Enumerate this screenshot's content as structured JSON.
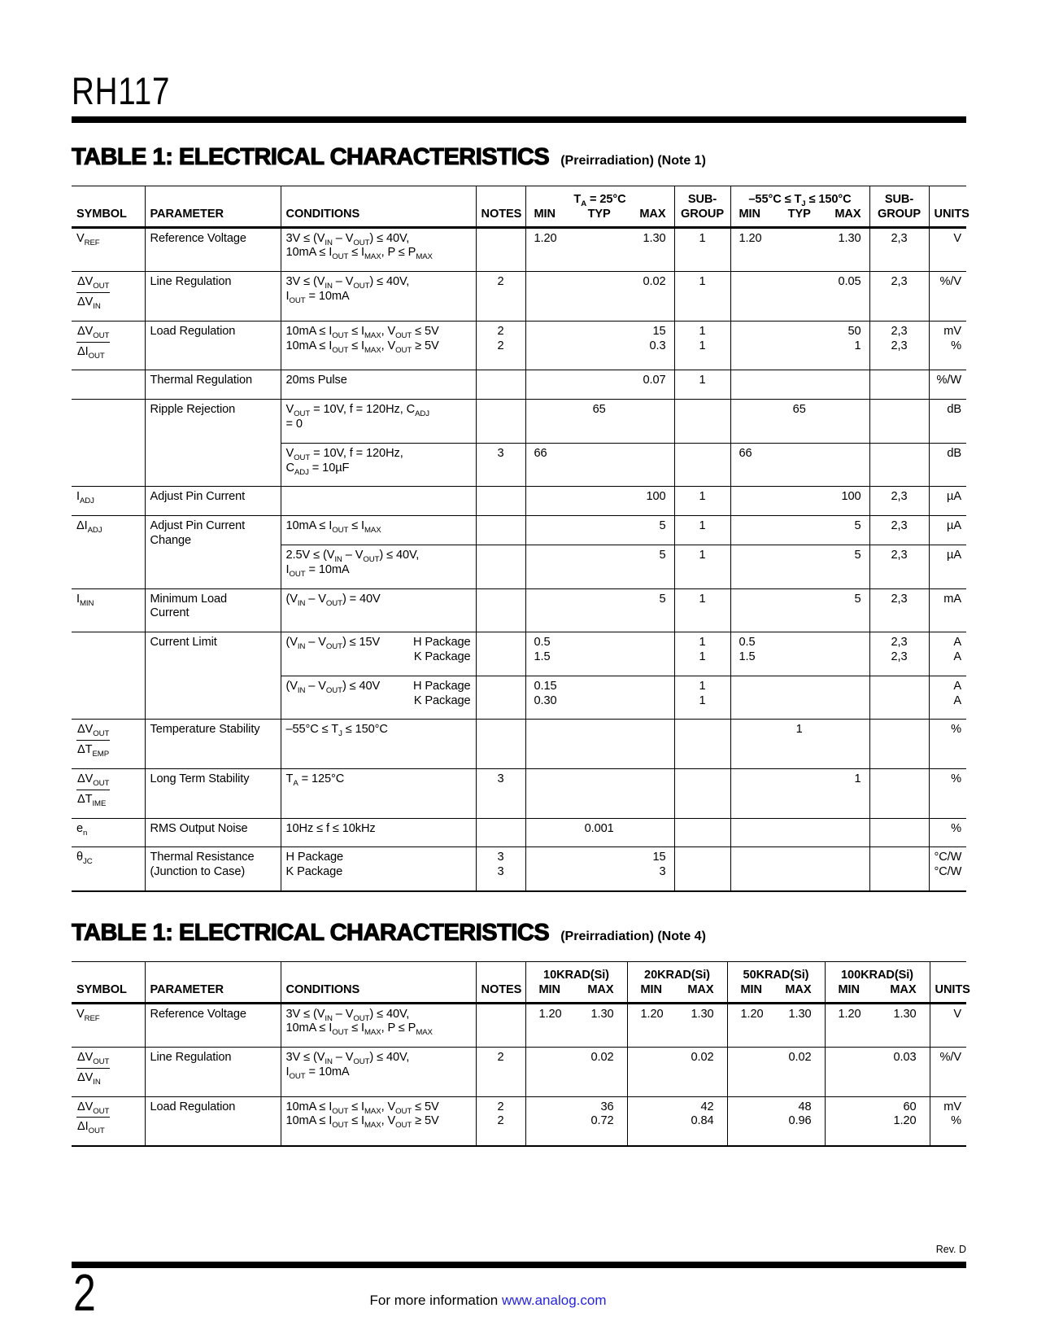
{
  "page": {
    "product": "RH117",
    "page_number": "2",
    "rev": "Rev. D",
    "footer_text": "For more information ",
    "footer_link": "www.analog.com",
    "link_color": "#2525dd"
  },
  "table1": {
    "title": "TABLE 1: ELECTRICAL CHARACTERISTICS",
    "subtitle": "(Preirradiation) (Note 1)",
    "head": {
      "symbol": "SYMBOL",
      "parameter": "PARAMETER",
      "conditions": "CONDITIONS",
      "notes": "NOTES",
      "min": "MIN",
      "typ": "TYP",
      "max": "MAX",
      "subgroup": [
        "SUB-",
        "GROUP"
      ],
      "group1": "T~A~ = 25°C",
      "group2": "–55°C ≤ T~J~ ≤ 150°C",
      "units": "UNITS"
    },
    "groups": [
      {
        "symbol": "V~REF~",
        "parameter": [
          "Reference Voltage"
        ],
        "subrows": [
          {
            "conditions": [
              "3V ≤ (V~IN~ – V~OUT~) ≤ 40V,",
              "10mA ≤ I~OUT~ ≤ I~MAX~, P ≤ P~MAX~"
            ],
            "notes": [],
            "g1": {
              "min": [
                "1.20"
              ],
              "typ": [],
              "max": [
                "1.30"
              ]
            },
            "sub1": [
              "1"
            ],
            "g2": {
              "min": [
                "1.20"
              ],
              "typ": [],
              "max": [
                "1.30"
              ]
            },
            "sub2": [
              "2,3"
            ],
            "units": [
              "V"
            ]
          }
        ]
      },
      {
        "symbol": {
          "frac": [
            "ΔV~OUT~",
            "ΔV~IN~"
          ]
        },
        "parameter": [
          "Line Regulation"
        ],
        "subrows": [
          {
            "conditions": [
              "3V ≤ (V~IN~ – V~OUT~) ≤ 40V,",
              "I~OUT~ = 10mA"
            ],
            "notes": [
              "2"
            ],
            "g1": {
              "min": [],
              "typ": [],
              "max": [
                "0.02"
              ]
            },
            "sub1": [
              "1"
            ],
            "g2": {
              "min": [],
              "typ": [],
              "max": [
                "0.05"
              ]
            },
            "sub2": [
              "2,3"
            ],
            "units": [
              "%/V"
            ]
          }
        ]
      },
      {
        "symbol": {
          "frac": [
            "ΔV~OUT~",
            "ΔI~OUT~"
          ]
        },
        "parameter": [
          "Load Regulation"
        ],
        "subrows": [
          {
            "conditions": [
              "10mA ≤ I~OUT~ ≤ I~MAX~, V~OUT~ ≤ 5V",
              "10mA ≤ I~OUT~ ≤ I~MAX~, V~OUT~ ≥ 5V"
            ],
            "notes": [
              "2",
              "2"
            ],
            "g1": {
              "min": [],
              "typ": [],
              "max": [
                "15",
                "0.3"
              ]
            },
            "sub1": [
              "1",
              "1"
            ],
            "g2": {
              "min": [],
              "typ": [],
              "max": [
                "50",
                "1"
              ]
            },
            "sub2": [
              "2,3",
              "2,3"
            ],
            "units": [
              "mV",
              "%"
            ]
          }
        ]
      },
      {
        "symbol": "",
        "parameter": [
          "Thermal Regulation"
        ],
        "subrows": [
          {
            "conditions": [
              "20ms Pulse"
            ],
            "notes": [],
            "g1": {
              "min": [],
              "typ": [],
              "max": [
                "0.07"
              ]
            },
            "sub1": [
              "1"
            ],
            "g2": {
              "min": [],
              "typ": [],
              "max": []
            },
            "sub2": [],
            "units": [
              "%/W"
            ]
          }
        ]
      },
      {
        "symbol": "",
        "parameter": [
          "Ripple Rejection"
        ],
        "subrows": [
          {
            "conditions": [
              "V~OUT~ = 10V, f = 120Hz, C~ADJ~",
              "= 0"
            ],
            "notes": [],
            "g1": {
              "min": [],
              "typ": [
                "65"
              ],
              "max": []
            },
            "sub1": [],
            "g2": {
              "min": [],
              "typ": [
                "65"
              ],
              "max": []
            },
            "sub2": [],
            "units": [
              "dB"
            ]
          },
          {
            "conditions": [
              "V~OUT~ = 10V, f = 120Hz,",
              "C~ADJ~ = 10µF"
            ],
            "notes": [
              "3"
            ],
            "g1": {
              "min": [
                "66"
              ],
              "typ": [],
              "max": []
            },
            "sub1": [],
            "g2": {
              "min": [
                "66"
              ],
              "typ": [],
              "max": []
            },
            "sub2": [],
            "units": [
              "dB"
            ]
          }
        ]
      },
      {
        "symbol": "I~ADJ~",
        "parameter": [
          "Adjust Pin Current"
        ],
        "subrows": [
          {
            "conditions": [],
            "notes": [],
            "g1": {
              "min": [],
              "typ": [],
              "max": [
                "100"
              ]
            },
            "sub1": [
              "1"
            ],
            "g2": {
              "min": [],
              "typ": [],
              "max": [
                "100"
              ]
            },
            "sub2": [
              "2,3"
            ],
            "units": [
              "µA"
            ]
          }
        ]
      },
      {
        "symbol": "ΔI~ADJ~",
        "parameter": [
          "Adjust Pin Current",
          "Change"
        ],
        "subrows": [
          {
            "conditions": [
              "10mA ≤ I~OUT~ ≤ I~MAX~"
            ],
            "notes": [],
            "g1": {
              "min": [],
              "typ": [],
              "max": [
                "5"
              ]
            },
            "sub1": [
              "1"
            ],
            "g2": {
              "min": [],
              "typ": [],
              "max": [
                "5"
              ]
            },
            "sub2": [
              "2,3"
            ],
            "units": [
              "µA"
            ]
          },
          {
            "conditions": [
              "2.5V ≤ (V~IN~ – V~OUT~) ≤ 40V,",
              "I~OUT~ = 10mA"
            ],
            "notes": [],
            "g1": {
              "min": [],
              "typ": [],
              "max": [
                "5"
              ]
            },
            "sub1": [
              "1"
            ],
            "g2": {
              "min": [],
              "typ": [],
              "max": [
                "5"
              ]
            },
            "sub2": [
              "2,3"
            ],
            "units": [
              "µA"
            ]
          }
        ]
      },
      {
        "symbol": "I~MIN~",
        "parameter": [
          "Minimum Load",
          "Current"
        ],
        "subrows": [
          {
            "conditions": [
              "(V~IN~ – V~OUT~) = 40V"
            ],
            "notes": [],
            "g1": {
              "min": [],
              "typ": [],
              "max": [
                "5"
              ]
            },
            "sub1": [
              "1"
            ],
            "g2": {
              "min": [],
              "typ": [],
              "max": [
                "5"
              ]
            },
            "sub2": [
              "2,3"
            ],
            "units": [
              "mA"
            ]
          }
        ]
      },
      {
        "symbol": "",
        "parameter": [
          "Current Limit"
        ],
        "subrows": [
          {
            "conditions": [
              "(V~IN~ – V~OUT~) ≤ 15V",
              ""
            ],
            "cond_right": [
              "H Package",
              "K Package"
            ],
            "notes": [],
            "g1": {
              "min": [
                "0.5",
                "1.5"
              ],
              "typ": [],
              "max": []
            },
            "sub1": [
              "1",
              "1"
            ],
            "g2": {
              "min": [
                "0.5",
                "1.5"
              ],
              "typ": [],
              "max": []
            },
            "sub2": [
              "2,3",
              "2,3"
            ],
            "units": [
              "A",
              "A"
            ]
          },
          {
            "conditions": [
              "(V~IN~ – V~OUT~) ≤ 40V",
              ""
            ],
            "cond_right": [
              "H Package",
              "K Package"
            ],
            "notes": [],
            "g1": {
              "min": [
                "0.15",
                "0.30"
              ],
              "typ": [],
              "max": []
            },
            "sub1": [
              "1",
              "1"
            ],
            "g2": {
              "min": [],
              "typ": [],
              "max": []
            },
            "sub2": [],
            "units": [
              "A",
              "A"
            ]
          }
        ]
      },
      {
        "symbol": {
          "frac": [
            "ΔV~OUT~",
            "ΔT~EMP~"
          ]
        },
        "parameter": [
          "Temperature Stability"
        ],
        "subrows": [
          {
            "conditions": [
              "–55°C ≤ T~J~ ≤ 150°C"
            ],
            "notes": [],
            "g1": {
              "min": [],
              "typ": [],
              "max": []
            },
            "sub1": [],
            "g2": {
              "min": [],
              "typ": [
                "1"
              ],
              "max": []
            },
            "sub2": [],
            "units": [
              "%"
            ]
          }
        ]
      },
      {
        "symbol": {
          "frac": [
            "ΔV~OUT~",
            "ΔT~IME~"
          ]
        },
        "parameter": [
          "Long Term Stability"
        ],
        "subrows": [
          {
            "conditions": [
              "T~A~ = 125°C"
            ],
            "notes": [
              "3"
            ],
            "g1": {
              "min": [],
              "typ": [],
              "max": []
            },
            "sub1": [],
            "g2": {
              "min": [],
              "typ": [],
              "max": [
                "1"
              ]
            },
            "sub2": [],
            "units": [
              "%"
            ]
          }
        ]
      },
      {
        "symbol": "e~n~",
        "parameter": [
          "RMS Output Noise"
        ],
        "subrows": [
          {
            "conditions": [
              "10Hz ≤ f ≤ 10kHz"
            ],
            "notes": [],
            "g1": {
              "min": [],
              "typ": [
                "0.001"
              ],
              "max": []
            },
            "sub1": [],
            "g2": {
              "min": [],
              "typ": [],
              "max": []
            },
            "sub2": [],
            "units": [
              "%"
            ]
          }
        ]
      },
      {
        "symbol": "θ~JC~",
        "parameter": [
          "Thermal Resistance",
          "(Junction to Case)"
        ],
        "subrows": [
          {
            "conditions": [
              "H Package",
              "K Package"
            ],
            "notes": [
              "3",
              "3"
            ],
            "g1": {
              "min": [],
              "typ": [],
              "max": [
                "15",
                "3"
              ]
            },
            "sub1": [],
            "g2": {
              "min": [],
              "typ": [],
              "max": []
            },
            "sub2": [],
            "units": [
              "°C/W",
              "°C/W"
            ]
          }
        ]
      }
    ]
  },
  "table2": {
    "title": "TABLE 1: ELECTRICAL CHARACTERISTICS",
    "subtitle": "(Preirradiation) (Note 4)",
    "head": {
      "symbol": "SYMBOL",
      "parameter": "PARAMETER",
      "conditions": "CONDITIONS",
      "notes": "NOTES",
      "min": "MIN",
      "max": "MAX",
      "krad": [
        "10KRAD(Si)",
        "20KRAD(Si)",
        "50KRAD(Si)",
        "100KRAD(Si)"
      ],
      "units": "UNITS"
    },
    "groups": [
      {
        "symbol": "V~REF~",
        "parameter": [
          "Reference Voltage"
        ],
        "subrows": [
          {
            "conditions": [
              "3V ≤ (V~IN~ – V~OUT~) ≤ 40V,",
              "10mA ≤ I~OUT~ ≤ I~MAX~, P ≤ P~MAX~"
            ],
            "notes": [],
            "g1": {
              "min": [
                "1.20"
              ],
              "max": [
                "1.30"
              ]
            },
            "g2": {
              "min": [
                "1.20"
              ],
              "max": [
                "1.30"
              ]
            },
            "g3": {
              "min": [
                "1.20"
              ],
              "max": [
                "1.30"
              ]
            },
            "g4": {
              "min": [
                "1.20"
              ],
              "max": [
                "1.30"
              ]
            },
            "units": [
              "V"
            ]
          }
        ]
      },
      {
        "symbol": {
          "frac": [
            "ΔV~OUT~",
            "ΔV~IN~"
          ]
        },
        "parameter": [
          "Line Regulation"
        ],
        "subrows": [
          {
            "conditions": [
              "3V ≤ (V~IN~ – V~OUT~) ≤ 40V,",
              "I~OUT~ = 10mA"
            ],
            "notes": [
              "2"
            ],
            "g1": {
              "min": [],
              "max": [
                "0.02"
              ]
            },
            "g2": {
              "min": [],
              "max": [
                "0.02"
              ]
            },
            "g3": {
              "min": [],
              "max": [
                "0.02"
              ]
            },
            "g4": {
              "min": [],
              "max": [
                "0.03"
              ]
            },
            "units": [
              "%/V"
            ]
          }
        ]
      },
      {
        "symbol": {
          "frac": [
            "ΔV~OUT~",
            "ΔI~OUT~"
          ]
        },
        "parameter": [
          "Load Regulation"
        ],
        "subrows": [
          {
            "conditions": [
              "10mA ≤ I~OUT~ ≤ I~MAX~, V~OUT~ ≤ 5V",
              "10mA ≤ I~OUT~ ≤ I~MAX~, V~OUT~ ≥ 5V"
            ],
            "notes": [
              "2",
              "2"
            ],
            "g1": {
              "min": [],
              "max": [
                "36",
                "0.72"
              ]
            },
            "g2": {
              "min": [],
              "max": [
                "42",
                "0.84"
              ]
            },
            "g3": {
              "min": [],
              "max": [
                "48",
                "0.96"
              ]
            },
            "g4": {
              "min": [],
              "max": [
                "60",
                "1.20"
              ]
            },
            "units": [
              "mV",
              "%"
            ]
          }
        ]
      }
    ]
  }
}
